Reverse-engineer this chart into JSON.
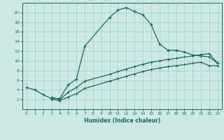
{
  "xlabel": "Humidex (Indice chaleur)",
  "bg_color": "#cce8e4",
  "grid_color": "#aacfcc",
  "line_color": "#1a6b60",
  "xlim": [
    -0.5,
    23.5
  ],
  "ylim": [
    0,
    22
  ],
  "xticks": [
    0,
    1,
    2,
    3,
    4,
    5,
    6,
    7,
    8,
    9,
    10,
    11,
    12,
    13,
    14,
    15,
    16,
    17,
    18,
    19,
    20,
    21,
    22,
    23
  ],
  "yticks": [
    2,
    4,
    6,
    8,
    10,
    12,
    14,
    16,
    18,
    20
  ],
  "curve1_x": [
    0,
    1,
    2,
    3,
    4,
    5,
    6,
    7,
    10,
    11,
    12,
    13,
    14,
    15,
    16,
    17,
    18,
    19,
    20,
    21,
    22,
    23
  ],
  "curve1_y": [
    4.5,
    4.0,
    3.0,
    2.2,
    2.2,
    5.0,
    6.2,
    13.0,
    19.0,
    20.5,
    21.0,
    20.2,
    19.5,
    17.5,
    13.5,
    12.2,
    12.2,
    11.8,
    11.2,
    11.0,
    10.8,
    9.5
  ],
  "curve2_x": [
    3,
    4,
    5,
    6,
    7,
    10,
    11,
    12,
    13,
    14,
    15,
    16,
    17,
    18,
    19,
    20,
    21,
    22,
    23
  ],
  "curve2_y": [
    2.5,
    2.0,
    3.5,
    4.5,
    5.8,
    7.2,
    7.8,
    8.3,
    8.8,
    9.3,
    9.7,
    10.0,
    10.3,
    10.5,
    10.8,
    11.0,
    11.3,
    11.5,
    9.5
  ],
  "curve3_x": [
    3,
    4,
    5,
    6,
    7,
    10,
    11,
    12,
    13,
    14,
    15,
    16,
    17,
    18,
    19,
    20,
    21,
    22,
    23
  ],
  "curve3_y": [
    2.0,
    1.8,
    2.5,
    3.2,
    4.3,
    5.8,
    6.3,
    6.8,
    7.3,
    7.8,
    8.2,
    8.5,
    8.8,
    9.0,
    9.2,
    9.5,
    9.7,
    9.0,
    9.0
  ]
}
